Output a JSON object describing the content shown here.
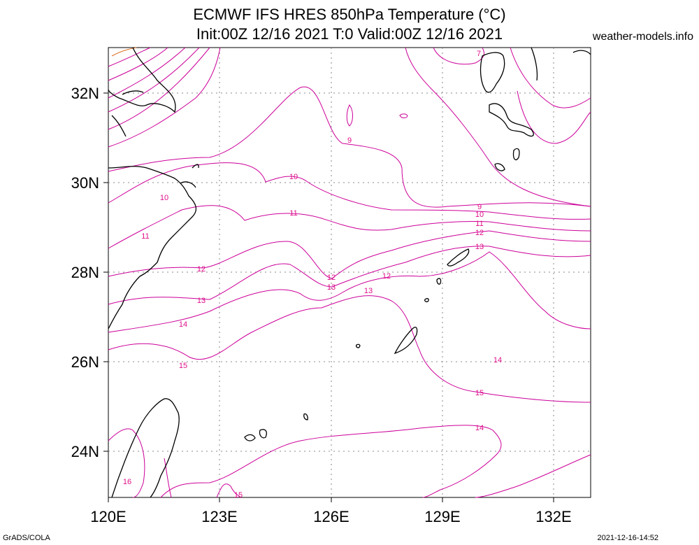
{
  "header": {
    "title_line1": "ECMWF IFS HRES 850hPa Temperature (°C)",
    "title_line2": "Init:00Z 12/16 2021 T:0 Valid:00Z 12/16 2021",
    "credit": "weather-models.info"
  },
  "footer": {
    "left": "GrADS/COLA",
    "right": "2021-12-16-14:52"
  },
  "map": {
    "lon_labels": [
      "120E",
      "123E",
      "126E",
      "129E",
      "132E"
    ],
    "lat_labels": [
      "32N",
      "30N",
      "28N",
      "26N",
      "24N"
    ],
    "contour_color": "#cc0099",
    "label_color": "#e0108a",
    "coast_color": "#000000",
    "contour_labels": [
      "9",
      "10",
      "11",
      "12",
      "13",
      "14",
      "15",
      "16",
      "7",
      "10",
      "11",
      "12",
      "13",
      "12",
      "13",
      "14",
      "15",
      "14",
      "15",
      "16",
      "16",
      "16",
      "9",
      "10",
      "11"
    ]
  }
}
